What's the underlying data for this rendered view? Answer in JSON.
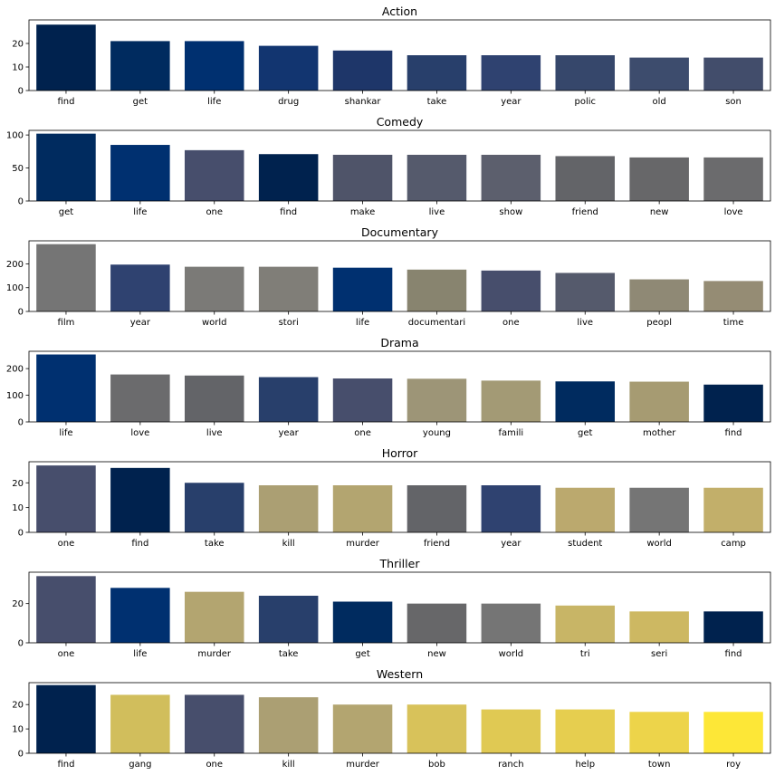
{
  "chart_data": [
    {
      "type": "bar",
      "title": "Action",
      "categories": [
        "find",
        "get",
        "life",
        "drug",
        "shankar",
        "take",
        "year",
        "polic",
        "old",
        "son"
      ],
      "values": [
        28,
        21,
        21,
        19,
        17,
        15,
        15,
        15,
        14,
        14
      ],
      "colors": [
        "#00224e",
        "#002b5f",
        "#003070",
        "#123570",
        "#1e3669",
        "#283f6b",
        "#2f4270",
        "#36476b",
        "#3d4c6d",
        "#424d6b"
      ],
      "ylim": [
        0,
        30
      ],
      "yticks": [
        0,
        10,
        20
      ]
    },
    {
      "type": "bar",
      "title": "Comedy",
      "categories": [
        "get",
        "life",
        "one",
        "find",
        "make",
        "live",
        "show",
        "friend",
        "new",
        "love"
      ],
      "values": [
        102,
        85,
        77,
        71,
        70,
        70,
        70,
        68,
        66,
        66
      ],
      "colors": [
        "#002b5f",
        "#003070",
        "#474e6c",
        "#00224e",
        "#4f5469",
        "#555a6c",
        "#5c5f6d",
        "#636468",
        "#676769",
        "#6b6b6d"
      ],
      "ylim": [
        0,
        107
      ],
      "yticks": [
        0,
        50,
        100
      ]
    },
    {
      "type": "bar",
      "title": "Documentary",
      "categories": [
        "film",
        "year",
        "world",
        "stori",
        "life",
        "documentari",
        "one",
        "live",
        "peopl",
        "time"
      ],
      "values": [
        283,
        197,
        188,
        188,
        184,
        176,
        172,
        162,
        135,
        128
      ],
      "colors": [
        "#757575",
        "#2f4270",
        "#7b7a77",
        "#807e78",
        "#003070",
        "#88846f",
        "#474e6c",
        "#555a6c",
        "#8f8975",
        "#958c74"
      ],
      "ylim": [
        0,
        297
      ],
      "yticks": [
        0,
        100,
        200
      ]
    },
    {
      "type": "bar",
      "title": "Drama",
      "categories": [
        "life",
        "love",
        "live",
        "year",
        "one",
        "young",
        "famili",
        "get",
        "mother",
        "find"
      ],
      "values": [
        253,
        178,
        174,
        168,
        163,
        162,
        155,
        152,
        151,
        140
      ],
      "colors": [
        "#003070",
        "#6b6b6d",
        "#636468",
        "#283f6b",
        "#474e6c",
        "#9d9577",
        "#a39a75",
        "#002b5f",
        "#a69b72",
        "#00224e"
      ],
      "ylim": [
        0,
        265
      ],
      "yticks": [
        0,
        100,
        200
      ]
    },
    {
      "type": "bar",
      "title": "Horror",
      "categories": [
        "one",
        "find",
        "take",
        "kill",
        "murder",
        "friend",
        "year",
        "student",
        "world",
        "camp"
      ],
      "values": [
        27,
        26,
        20,
        19,
        19,
        19,
        19,
        18,
        18,
        18
      ],
      "colors": [
        "#474e6c",
        "#00224e",
        "#283f6b",
        "#ab9f73",
        "#b3a570",
        "#636468",
        "#2f4270",
        "#bba96e",
        "#757575",
        "#c2af6a"
      ],
      "ylim": [
        0,
        28.5
      ],
      "yticks": [
        0,
        10,
        20
      ]
    },
    {
      "type": "bar",
      "title": "Thriller",
      "categories": [
        "one",
        "life",
        "murder",
        "take",
        "get",
        "new",
        "world",
        "tri",
        "seri",
        "find"
      ],
      "values": [
        34,
        28,
        26,
        24,
        21,
        20,
        20,
        19,
        16,
        16
      ],
      "colors": [
        "#474e6c",
        "#003070",
        "#b3a570",
        "#283f6b",
        "#002b5f",
        "#676769",
        "#757575",
        "#c8b566",
        "#cdb862",
        "#00224e"
      ],
      "ylim": [
        0,
        36
      ],
      "yticks": [
        0,
        20
      ]
    },
    {
      "type": "bar",
      "title": "Western",
      "categories": [
        "find",
        "gang",
        "one",
        "kill",
        "murder",
        "bob",
        "ranch",
        "help",
        "town",
        "roy"
      ],
      "values": [
        28,
        24,
        24,
        23,
        20,
        20,
        18,
        18,
        17,
        17
      ],
      "colors": [
        "#00224e",
        "#d1be5c",
        "#474e6c",
        "#ab9f73",
        "#b3a570",
        "#d8c25a",
        "#e0c953",
        "#e6ce4f",
        "#edd44a",
        "#fde737"
      ],
      "ylim": [
        0,
        29
      ],
      "yticks": [
        0,
        10,
        20
      ]
    }
  ]
}
